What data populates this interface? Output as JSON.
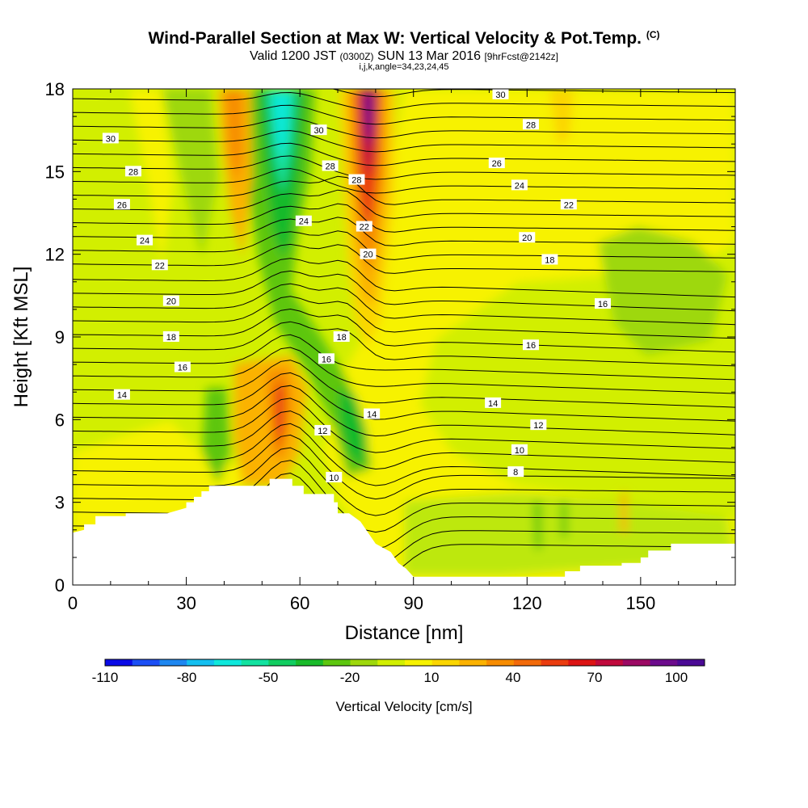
{
  "title": {
    "main": "Wind-Parallel Section at Max W: Vertical Velocity & Pot.Temp.",
    "main_mark": "(C)",
    "sub_a": "Valid 1200 JST",
    "sub_b": "(0300Z)",
    "sub_c": "SUN 13 Mar 2016",
    "sub_d": "[9hrFcst@2142z]",
    "sub2": "i,j,k,angle=34,23,24,45"
  },
  "chart_data": {
    "type": "heatmap",
    "xlabel": "Distance [nm]",
    "ylabel": "Height [Kft MSL]",
    "xlim": [
      0,
      175
    ],
    "ylim": [
      0,
      18
    ],
    "x_ticks": [
      0,
      30,
      60,
      90,
      120,
      150
    ],
    "y_ticks": [
      0,
      3,
      6,
      9,
      12,
      15,
      18
    ],
    "colorbar": {
      "title": "Vertical Velocity [cm/s]",
      "labels": [
        "-110",
        "-80",
        "-50",
        "-20",
        "10",
        "40",
        "70",
        "100"
      ],
      "colors": [
        "#0a0ae6",
        "#1b4ff5",
        "#1e87f0",
        "#14bff0",
        "#0fe8dc",
        "#12e2a0",
        "#11cd60",
        "#19ba2a",
        "#5dc60f",
        "#9ed80c",
        "#d2ef00",
        "#f7f200",
        "#fbd600",
        "#fbb200",
        "#f78c00",
        "#f26a0a",
        "#ea3c0f",
        "#dc1414",
        "#c00a3c",
        "#9c0a64",
        "#6c0b8c",
        "#4a0a95"
      ]
    },
    "wind_cores": [
      {
        "sign": "updraft",
        "x": 77,
        "y_range": [
          11,
          18
        ],
        "max_cm_s": 105
      },
      {
        "sign": "downdraft",
        "x": 55,
        "y_range": [
          12,
          18
        ],
        "min_cm_s": -55
      },
      {
        "sign": "updraft",
        "x": 55,
        "y_range": [
          4,
          8
        ],
        "max_cm_s": 45
      }
    ],
    "theta_contours": [
      {
        "label": "30",
        "label_points": [
          [
            10,
            16.2
          ],
          [
            65,
            16.5
          ],
          [
            113,
            17.8
          ]
        ]
      },
      {
        "label": "28",
        "label_points": [
          [
            16,
            15.0
          ],
          [
            68,
            15.2
          ],
          [
            121,
            16.7
          ]
        ]
      },
      {
        "label": "28",
        "label_points": [
          [
            75,
            14.7
          ]
        ]
      },
      {
        "label": "26",
        "label_points": [
          [
            13,
            13.8
          ],
          [
            112,
            15.3
          ]
        ]
      },
      {
        "label": "24",
        "label_points": [
          [
            19,
            12.5
          ],
          [
            61,
            13.2
          ],
          [
            118,
            14.5
          ]
        ]
      },
      {
        "label": "22",
        "label_points": [
          [
            23,
            11.6
          ],
          [
            77,
            13.0
          ],
          [
            131,
            13.8
          ]
        ]
      },
      {
        "label": "20",
        "label_points": [
          [
            26,
            10.3
          ],
          [
            78,
            12.0
          ],
          [
            120,
            12.6
          ]
        ]
      },
      {
        "label": "18",
        "label_points": [
          [
            26,
            9.0
          ],
          [
            71,
            9.0
          ],
          [
            126,
            11.8
          ]
        ]
      },
      {
        "label": "16",
        "label_points": [
          [
            29,
            7.9
          ],
          [
            67,
            8.2
          ],
          [
            121,
            8.7
          ],
          [
            140,
            10.2
          ]
        ]
      },
      {
        "label": "14",
        "label_points": [
          [
            13,
            6.9
          ],
          [
            79,
            6.2
          ],
          [
            111,
            6.6
          ]
        ]
      },
      {
        "label": "12",
        "label_points": [
          [
            66,
            5.6
          ],
          [
            123,
            5.8
          ]
        ]
      },
      {
        "label": "10",
        "label_points": [
          [
            69,
            3.9
          ],
          [
            118,
            4.9
          ]
        ]
      },
      {
        "label": "8",
        "label_points": [
          [
            117,
            4.1
          ]
        ]
      }
    ],
    "terrain_profile_kft": [
      [
        0,
        1.9
      ],
      [
        3,
        2.0
      ],
      [
        3,
        2.2
      ],
      [
        6,
        2.2
      ],
      [
        6,
        2.5
      ],
      [
        14,
        2.5
      ],
      [
        14,
        2.6
      ],
      [
        25,
        2.6
      ],
      [
        30,
        2.8
      ],
      [
        30,
        3.0
      ],
      [
        32,
        3.0
      ],
      [
        32,
        3.2
      ],
      [
        34,
        3.2
      ],
      [
        34,
        3.4
      ],
      [
        36,
        3.4
      ],
      [
        36,
        3.6
      ],
      [
        52,
        3.6
      ],
      [
        52,
        3.85
      ],
      [
        58,
        3.85
      ],
      [
        58,
        3.6
      ],
      [
        61,
        3.6
      ],
      [
        61,
        3.3
      ],
      [
        69,
        3.3
      ],
      [
        69,
        3.0
      ],
      [
        70,
        3.0
      ],
      [
        70,
        2.6
      ],
      [
        73,
        2.6
      ],
      [
        76,
        2.3
      ],
      [
        80,
        1.5
      ],
      [
        84,
        1.2
      ],
      [
        86,
        0.8
      ],
      [
        88,
        0.6
      ],
      [
        90,
        0.3
      ],
      [
        130,
        0.3
      ],
      [
        130,
        0.5
      ],
      [
        134,
        0.5
      ],
      [
        134,
        0.7
      ],
      [
        145,
        0.7
      ],
      [
        145,
        0.8
      ],
      [
        150,
        0.8
      ],
      [
        150,
        1.0
      ],
      [
        152,
        1.0
      ],
      [
        152,
        1.25
      ],
      [
        158,
        1.25
      ],
      [
        158,
        1.5
      ],
      [
        175,
        1.5
      ]
    ]
  }
}
